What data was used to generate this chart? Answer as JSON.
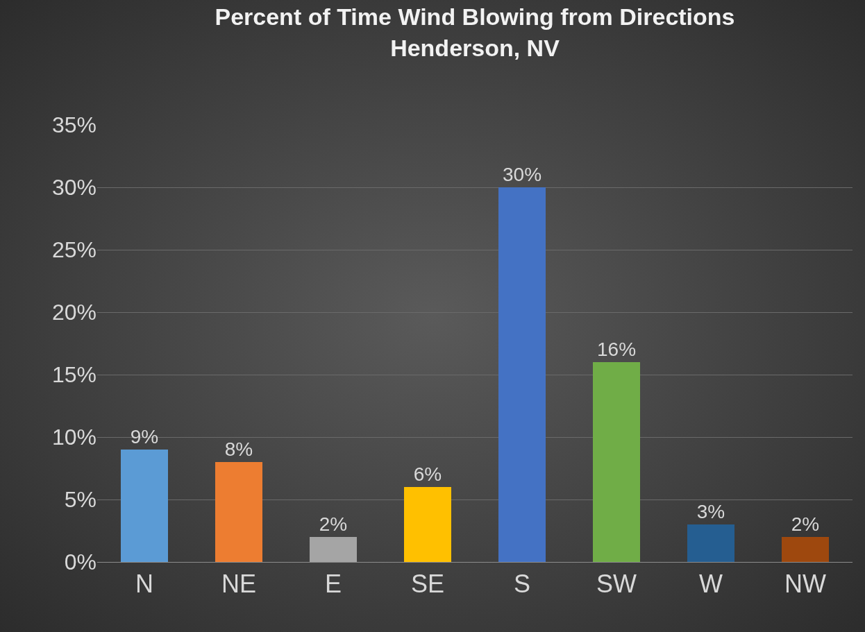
{
  "chart_data": {
    "type": "bar",
    "title": "Percent of Time Wind Blowing from Directions",
    "subtitle": "Henderson, NV",
    "categories": [
      "N",
      "NE",
      "E",
      "SE",
      "S",
      "SW",
      "W",
      "NW"
    ],
    "values": [
      9,
      8,
      2,
      6,
      30,
      16,
      3,
      2
    ],
    "value_labels": [
      "9%",
      "8%",
      "2%",
      "6%",
      "30%",
      "16%",
      "3%",
      "2%"
    ],
    "colors": [
      "#5b9bd5",
      "#ed7d31",
      "#a5a5a5",
      "#ffc000",
      "#4472c4",
      "#70ad47",
      "#255e91",
      "#9e480e"
    ],
    "ylim": [
      0,
      35
    ],
    "yticks": [
      {
        "value": 0,
        "label": "0%"
      },
      {
        "value": 5,
        "label": "5%"
      },
      {
        "value": 10,
        "label": "10%"
      },
      {
        "value": 15,
        "label": "15%"
      },
      {
        "value": 20,
        "label": "20%"
      },
      {
        "value": 25,
        "label": "25%"
      },
      {
        "value": 30,
        "label": "30%"
      },
      {
        "value": 35,
        "label": "35%"
      }
    ],
    "grid": "y"
  }
}
